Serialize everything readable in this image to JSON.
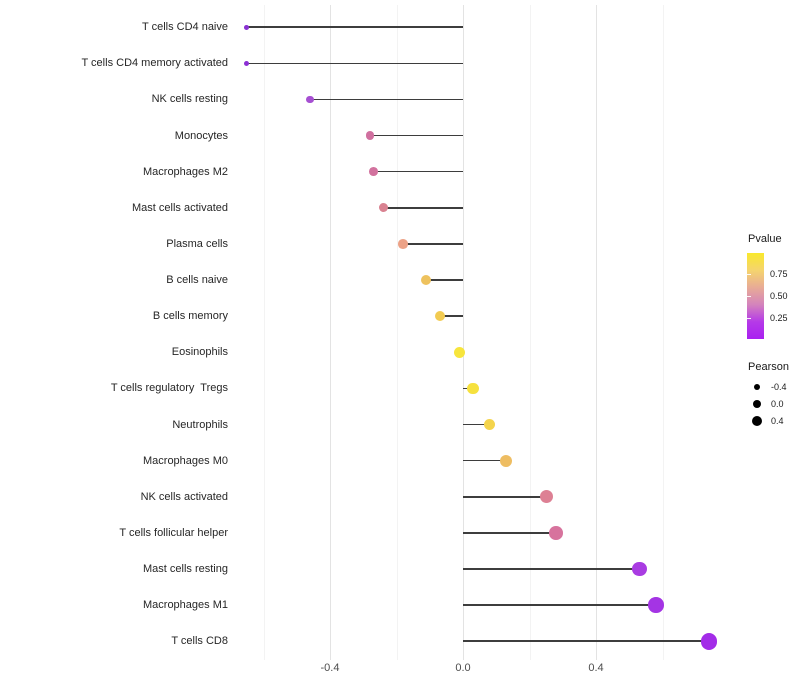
{
  "chart_data": {
    "type": "lollipop",
    "orientation": "horizontal",
    "title": "",
    "xlabel": "",
    "ylabel": "",
    "x_ticks": [
      {
        "value": -0.4,
        "label": "-0.4"
      },
      {
        "value": 0.0,
        "label": "0.0"
      },
      {
        "value": 0.4,
        "label": "0.4"
      }
    ],
    "x_range": [
      -0.68,
      0.77
    ],
    "baseline": 0,
    "gridlines": {
      "major": [
        -0.4,
        0.0,
        0.4
      ],
      "minor": [
        -0.6,
        -0.2,
        0.2,
        0.6
      ]
    },
    "points": [
      {
        "label": "T cells CD4 naive",
        "pearson": -0.65,
        "color": "#8932d2",
        "radius": 2.4
      },
      {
        "label": "T cells CD4 memory activated",
        "pearson": -0.65,
        "color": "#8c2fd4",
        "radius": 2.6
      },
      {
        "label": "NK cells resting",
        "pearson": -0.46,
        "color": "#a64fd2",
        "radius": 3.8
      },
      {
        "label": "Monocytes",
        "pearson": -0.28,
        "color": "#d0709f",
        "radius": 4.3
      },
      {
        "label": "Macrophages M2",
        "pearson": -0.27,
        "color": "#d2729e",
        "radius": 4.4
      },
      {
        "label": "Mast cells activated",
        "pearson": -0.24,
        "color": "#d98291",
        "radius": 4.6
      },
      {
        "label": "Plasma cells",
        "pearson": -0.18,
        "color": "#eca287",
        "radius": 4.8
      },
      {
        "label": "B cells naive",
        "pearson": -0.11,
        "color": "#eec25e",
        "radius": 5.0
      },
      {
        "label": "B cells memory",
        "pearson": -0.07,
        "color": "#f2cb52",
        "radius": 5.2
      },
      {
        "label": "Eosinophils",
        "pearson": -0.01,
        "color": "#f7e53c",
        "radius": 5.5
      },
      {
        "label": "T cells regulatory  Tregs",
        "pearson": 0.03,
        "color": "#f6e13e",
        "radius": 5.6
      },
      {
        "label": "Neutrophils",
        "pearson": 0.08,
        "color": "#f4d44c",
        "radius": 5.8
      },
      {
        "label": "Macrophages M0",
        "pearson": 0.13,
        "color": "#eebd62",
        "radius": 6.1
      },
      {
        "label": "NK cells activated",
        "pearson": 0.25,
        "color": "#dd8094",
        "radius": 6.5
      },
      {
        "label": "T cells follicular helper",
        "pearson": 0.28,
        "color": "#d7739d",
        "radius": 6.8
      },
      {
        "label": "Mast cells resting",
        "pearson": 0.53,
        "color": "#a93ce2",
        "radius": 7.3
      },
      {
        "label": "Macrophages M1",
        "pearson": 0.58,
        "color": "#a434e4",
        "radius": 7.8
      },
      {
        "label": "T cells CD8",
        "pearson": 0.74,
        "color": "#a32ce8",
        "radius": 8.4
      }
    ]
  },
  "legend": {
    "pvalue": {
      "title": "Pvalue",
      "tick_labels": [
        "0.75",
        "0.50",
        "0.25"
      ],
      "gradient_top_to_bottom": [
        "#f9e92c",
        "#f5d46e",
        "#e8ab96",
        "#d484bc",
        "#b53ae8",
        "#a920f0"
      ]
    },
    "pearson": {
      "title": "Pearson",
      "dot_color": "#000000",
      "items": [
        {
          "label": "-0.4",
          "radius": 3.3
        },
        {
          "label": "0.0",
          "radius": 4.3
        },
        {
          "label": "0.4",
          "radius": 5.0
        }
      ]
    }
  },
  "style": {
    "stem_color": "#3d3d3d",
    "grid_major_color": "#e3e3e3",
    "grid_minor_color": "#f3f3f3",
    "axis_text_color": "#4d4d4d",
    "background": "#ffffff"
  }
}
